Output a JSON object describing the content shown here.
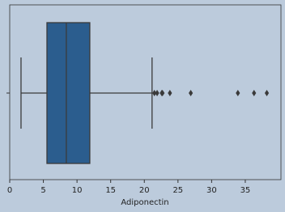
{
  "chart_data": {
    "type": "box",
    "orientation": "horizontal",
    "x_label": "Adiponectin",
    "xlim": [
      0,
      40.3
    ],
    "xticks": [
      0,
      5,
      10,
      15,
      20,
      25,
      30,
      35
    ],
    "color": "#2b5d8e",
    "box": {
      "whislo": 1.68,
      "q1": 5.53,
      "med": 8.41,
      "q3": 11.9,
      "whishi": 21.15,
      "fliers": [
        21.5,
        21.9,
        22.6,
        22.7,
        23.8,
        26.9,
        33.9,
        36.3,
        38.2
      ]
    }
  }
}
